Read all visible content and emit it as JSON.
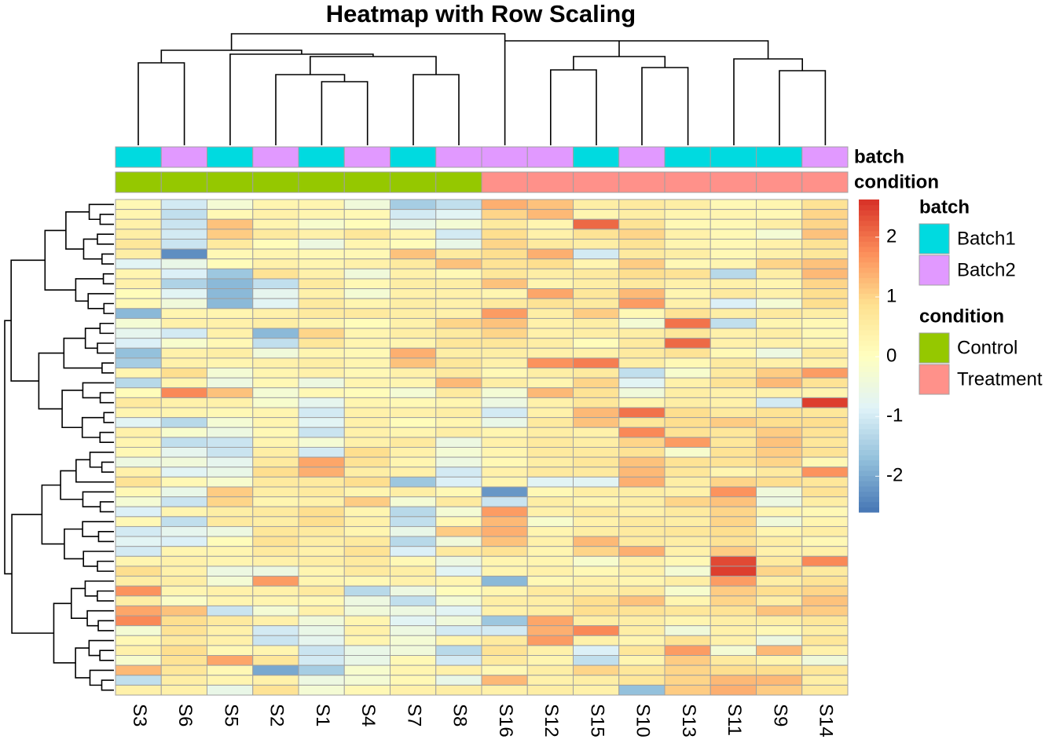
{
  "chart_data": {
    "type": "heatmap",
    "title": "Heatmap with Row Scaling",
    "columns": [
      "S3",
      "S6",
      "S5",
      "S2",
      "S1",
      "S4",
      "S7",
      "S8",
      "S16",
      "S12",
      "S15",
      "S10",
      "S13",
      "S11",
      "S9",
      "S14"
    ],
    "values": [
      [
        0.2,
        -1,
        -0.3,
        0.3,
        0.3,
        -0.4,
        -1.5,
        -1.2,
        1.4,
        1.2,
        0.5,
        0.6,
        0.5,
        0.2,
        0.3,
        0.8
      ],
      [
        0.3,
        -1.2,
        0.2,
        0.4,
        0.3,
        0.2,
        -1.0,
        -0.8,
        1.0,
        1.3,
        0.3,
        0.5,
        0.3,
        0.3,
        0.2,
        1.0
      ],
      [
        0.4,
        -1.1,
        1.2,
        0.3,
        -0.2,
        0.1,
        -0.6,
        -0.3,
        0.6,
        0.3,
        2.1,
        0.8,
        0.2,
        0.2,
        0.5,
        1.0
      ],
      [
        0.5,
        -1.0,
        1.1,
        0.6,
        0.4,
        0.7,
        0.3,
        -1.0,
        0.9,
        0.4,
        0.8,
        1.0,
        0.4,
        0.2,
        -0.3,
        1.2
      ],
      [
        0.7,
        -1.1,
        0.6,
        0.1,
        -0.5,
        0.3,
        0.1,
        -0.6,
        1.0,
        0.6,
        0.5,
        0.8,
        0.3,
        0.2,
        0.4,
        0.8
      ],
      [
        0.5,
        -2.3,
        0.2,
        0.3,
        0.2,
        0.2,
        1.2,
        0.6,
        0.9,
        1.4,
        -1.0,
        0.6,
        0.5,
        0.2,
        0.4,
        0.7
      ],
      [
        -0.8,
        -0.6,
        0.1,
        0.4,
        0.3,
        0.4,
        0.6,
        1.2,
        0.8,
        0.9,
        0.3,
        1.1,
        0.2,
        0.3,
        1.0,
        1.2
      ],
      [
        0.3,
        -0.9,
        -1.6,
        0.8,
        0.4,
        -0.4,
        0.4,
        0.2,
        0.7,
        0.5,
        0.6,
        0.9,
        0.8,
        -1.3,
        0.5,
        1.3
      ],
      [
        0.4,
        -1.4,
        -1.8,
        -1.2,
        0.6,
        0.2,
        0.5,
        0.5,
        1.2,
        0.3,
        0.5,
        0.6,
        0.4,
        0.4,
        0.3,
        1.0
      ],
      [
        0.1,
        -0.8,
        -1.8,
        -0.7,
        0.4,
        -0.3,
        0.4,
        0.4,
        0.3,
        1.5,
        0.7,
        1.3,
        0.3,
        0.6,
        0.4,
        0.9
      ],
      [
        0.2,
        -0.4,
        -1.8,
        -0.8,
        0.6,
        0.3,
        0.5,
        0.4,
        0.6,
        0.8,
        0.6,
        1.6,
        0.4,
        -0.9,
        -0.3,
        0.9
      ],
      [
        -1.8,
        0.3,
        0.3,
        0.4,
        0.6,
        0.6,
        0.5,
        0.4,
        1.6,
        0.5,
        1.1,
        0.2,
        0.8,
        0.5,
        0.6,
        0.5
      ],
      [
        -0.3,
        0.4,
        0.4,
        0.5,
        0.3,
        0.1,
        0.4,
        1.0,
        1.2,
        0.4,
        0.5,
        -0.3,
        2.0,
        -1.2,
        0.3,
        0.2
      ],
      [
        -0.7,
        -1.0,
        0.4,
        -1.8,
        1.0,
        0.3,
        0.5,
        0.6,
        1.0,
        0.4,
        0.5,
        0.5,
        0.7,
        0.4,
        0.5,
        0.2
      ],
      [
        -0.9,
        -0.2,
        0.2,
        -1.2,
        0.7,
        0.3,
        0.3,
        0.7,
        0.7,
        0.5,
        0.1,
        0.6,
        2.1,
        0.4,
        0.4,
        0.3
      ],
      [
        -1.7,
        0.4,
        0.5,
        -0.4,
        0.3,
        0.2,
        1.4,
        0.5,
        0.5,
        0.4,
        0.4,
        0.6,
        0.8,
        0.2,
        -0.5,
        0.6
      ],
      [
        -1.5,
        0.4,
        0.3,
        0.4,
        0.5,
        0.3,
        1.2,
        0.7,
        0.4,
        1.7,
        1.9,
        0.5,
        0.2,
        0.6,
        0.4,
        0.4
      ],
      [
        0.3,
        0.9,
        -0.3,
        0.3,
        0.4,
        0.2,
        0.4,
        0.6,
        0.2,
        0.5,
        0.6,
        -1.2,
        -0.2,
        0.6,
        1.1,
        1.6
      ],
      [
        -1.3,
        0.3,
        -0.5,
        0.2,
        -0.5,
        0.3,
        0.3,
        1.3,
        0.5,
        0.3,
        1.0,
        -0.8,
        0.4,
        0.8,
        1.3,
        0.8
      ],
      [
        0.1,
        1.8,
        1.2,
        -0.3,
        0.2,
        0.1,
        -0.3,
        0.6,
        -0.3,
        1.3,
        0.8,
        -0.4,
        0.5,
        0.4,
        0.4,
        0.3
      ],
      [
        0.6,
        0.4,
        0.4,
        -0.2,
        -0.7,
        0.3,
        0.2,
        0.3,
        -0.5,
        0.4,
        0.7,
        0.3,
        0.5,
        0.4,
        -1.0,
        2.5
      ],
      [
        0.3,
        0.3,
        0.2,
        0.3,
        -1.0,
        0.4,
        0.4,
        0.5,
        -1.0,
        0.4,
        1.3,
        2.0,
        0.9,
        0.6,
        0.8,
        0.7
      ],
      [
        -0.8,
        -1.3,
        -0.3,
        0.3,
        -0.8,
        0.4,
        0.1,
        0.3,
        -0.6,
        0.6,
        1.2,
        0.7,
        0.9,
        1.1,
        0.9,
        0.9
      ],
      [
        0.4,
        -0.2,
        -0.5,
        0.2,
        -1.1,
        0.4,
        0.3,
        0.5,
        0.3,
        0.5,
        0.4,
        1.8,
        0.8,
        0.7,
        1.1,
        0.8
      ],
      [
        0.3,
        -1.2,
        -1.1,
        0.3,
        -0.3,
        0.4,
        0.6,
        -0.5,
        0.4,
        0.6,
        0.5,
        1.0,
        1.6,
        0.7,
        1.2,
        0.7
      ],
      [
        0.2,
        -0.7,
        -1.1,
        0.5,
        -1.0,
        0.9,
        0.4,
        -0.3,
        0.3,
        0.6,
        0.6,
        0.8,
        -0.2,
        0.8,
        1.1,
        0.8
      ],
      [
        -0.5,
        -0.4,
        -0.7,
        0.6,
        1.5,
        0.8,
        0.3,
        -0.5,
        0.2,
        0.5,
        0.7,
        1.2,
        0.8,
        0.8,
        1.0,
        0.2
      ],
      [
        0.4,
        -0.8,
        -0.6,
        0.9,
        1.4,
        0.5,
        0.4,
        -1.0,
        0.4,
        0.6,
        0.6,
        1.3,
        0.7,
        0.3,
        0.6,
        1.7
      ],
      [
        0.8,
        0.2,
        -0.2,
        0.6,
        0.6,
        0.9,
        -1.6,
        -0.9,
        0.3,
        -0.8,
        -0.8,
        1.4,
        0.5,
        1.0,
        0.9,
        0.7
      ],
      [
        0.2,
        -0.6,
        1.1,
        0.5,
        0.6,
        0.3,
        0.5,
        0.2,
        -2.2,
        0.2,
        0.5,
        0.5,
        0.4,
        1.7,
        -0.4,
        0.8
      ],
      [
        -0.3,
        -1.1,
        1.0,
        0.3,
        0.4,
        1.1,
        -0.3,
        0.6,
        -1.1,
        0.5,
        0.3,
        0.5,
        1.0,
        1.2,
        -0.5,
        0.5
      ],
      [
        -0.9,
        0.3,
        0.5,
        0.6,
        0.9,
        0.3,
        -1.3,
        -0.3,
        1.6,
        0.4,
        0.6,
        0.4,
        0.6,
        1.0,
        0.3,
        0.2
      ],
      [
        0.2,
        -1.2,
        0.6,
        0.5,
        0.9,
        0.4,
        -1.2,
        0.2,
        1.3,
        -0.2,
        0.4,
        0.6,
        0.5,
        1.0,
        -0.4,
        0.3
      ],
      [
        -1.0,
        -0.7,
        -0.5,
        0.7,
        0.6,
        0.3,
        -0.6,
        1.1,
        1.4,
        0.3,
        0.5,
        0.6,
        0.7,
        0.9,
        0.3,
        0.5
      ],
      [
        -0.8,
        -0.9,
        0.1,
        0.8,
        0.5,
        0.6,
        -1.3,
        -0.4,
        1.2,
        0.4,
        1.3,
        0.6,
        0.5,
        0.8,
        0.5,
        0.2
      ],
      [
        -1.0,
        0.3,
        0.3,
        0.6,
        0.4,
        0.8,
        -0.9,
        0.6,
        0.8,
        0.3,
        1.0,
        1.4,
        0.4,
        1.1,
        0.4,
        0.4
      ],
      [
        0.3,
        0.4,
        0.3,
        0.4,
        0.5,
        0.6,
        0.2,
        -0.5,
        0.3,
        0.3,
        -0.2,
        0.4,
        0.2,
        2.4,
        0.6,
        1.8
      ],
      [
        0.9,
        0.4,
        -0.5,
        -0.5,
        0.3,
        0.6,
        0.5,
        -0.8,
        0.3,
        0.4,
        0.2,
        0.4,
        -0.3,
        2.5,
        1.0,
        0.6
      ],
      [
        0.5,
        0.5,
        -0.3,
        1.6,
        0.3,
        0.2,
        0.4,
        0.3,
        -1.8,
        0.2,
        0.4,
        0.3,
        0.5,
        1.6,
        0.5,
        0.8
      ],
      [
        1.7,
        0.3,
        0.4,
        0.4,
        0.6,
        -1.3,
        -0.5,
        0.1,
        0.3,
        0.6,
        0.5,
        0.6,
        -0.2,
        1.1,
        0.9,
        1.0
      ],
      [
        0.5,
        -0.1,
        0.3,
        0.3,
        0.2,
        -0.5,
        -1.2,
        -0.3,
        0.5,
        0.5,
        0.9,
        1.2,
        0.3,
        1.0,
        0.5,
        1.2
      ],
      [
        1.5,
        1.2,
        -1.1,
        -0.3,
        0.4,
        -0.4,
        -0.5,
        -0.8,
        0.4,
        0.5,
        0.9,
        0.8,
        0.7,
        0.8,
        1.2,
        1.1
      ],
      [
        1.8,
        0.9,
        0.6,
        0.4,
        -0.4,
        0.3,
        -0.8,
        -0.4,
        -1.6,
        1.5,
        0.5,
        0.5,
        0.3,
        0.5,
        0.5,
        0.7
      ],
      [
        -0.3,
        0.8,
        0.4,
        -1.0,
        -0.6,
        0.4,
        -0.5,
        -1.0,
        -1.0,
        1.4,
        1.8,
        0.5,
        -0.4,
        0.4,
        0.2,
        0.5
      ],
      [
        0.2,
        0.6,
        0.4,
        -1.1,
        -0.7,
        0.3,
        -0.3,
        0.3,
        0.6,
        1.6,
        0.4,
        0.3,
        0.8,
        0.4,
        -0.5,
        0.7
      ],
      [
        0.4,
        0.9,
        0.2,
        0.3,
        -1.1,
        -0.6,
        -0.4,
        -1.3,
        0.8,
        0.4,
        -0.9,
        0.7,
        1.6,
        -0.3,
        1.3,
        0.4
      ],
      [
        -0.2,
        0.8,
        1.5,
        0.7,
        -1.0,
        -0.6,
        0.2,
        -1.0,
        0.6,
        0.3,
        -1.2,
        0.3,
        1.1,
        0.6,
        0.3,
        -0.4
      ],
      [
        1.3,
        0.7,
        0.2,
        -2.0,
        -1.5,
        -0.2,
        0.3,
        0.4,
        0.2,
        0.5,
        1.0,
        0.7,
        1.0,
        0.9,
        0.9,
        0.7
      ],
      [
        -1.2,
        0.5,
        0.3,
        0.4,
        -0.5,
        -0.3,
        0.2,
        -0.6,
        1.3,
        0.4,
        0.5,
        0.7,
        1.0,
        1.3,
        1.3,
        0.5
      ],
      [
        0.4,
        0.4,
        -0.6,
        0.8,
        -0.3,
        0.2,
        0.4,
        0.5,
        0.4,
        0.5,
        0.4,
        -1.7,
        1.1,
        1.4,
        1.1,
        0.6
      ]
    ],
    "annotations": [
      {
        "name": "batch",
        "values": [
          "Batch1",
          "Batch2",
          "Batch1",
          "Batch2",
          "Batch1",
          "Batch2",
          "Batch1",
          "Batch2",
          "Batch2",
          "Batch2",
          "Batch1",
          "Batch2",
          "Batch1",
          "Batch1",
          "Batch1",
          "Batch2"
        ],
        "levels": [
          {
            "name": "Batch1",
            "color": "#00dae0"
          },
          {
            "name": "Batch2",
            "color": "#e199ff"
          }
        ]
      },
      {
        "name": "condition",
        "values": [
          "Control",
          "Control",
          "Control",
          "Control",
          "Control",
          "Control",
          "Control",
          "Control",
          "Treatment",
          "Treatment",
          "Treatment",
          "Treatment",
          "Treatment",
          "Treatment",
          "Treatment",
          "Treatment"
        ],
        "levels": [
          {
            "name": "Control",
            "color": "#95c800"
          },
          {
            "name": "Treatment",
            "color": "#ff918a"
          }
        ]
      }
    ],
    "colors": [
      "#4575b4",
      "#91bfdb",
      "#e0f3f8",
      "#ffffbf",
      "#fee090",
      "#fc8d59",
      "#d73027"
    ],
    "clim": [
      -2.6,
      2.63
    ],
    "cticks": [
      -2,
      -1,
      0,
      1,
      2
    ]
  }
}
